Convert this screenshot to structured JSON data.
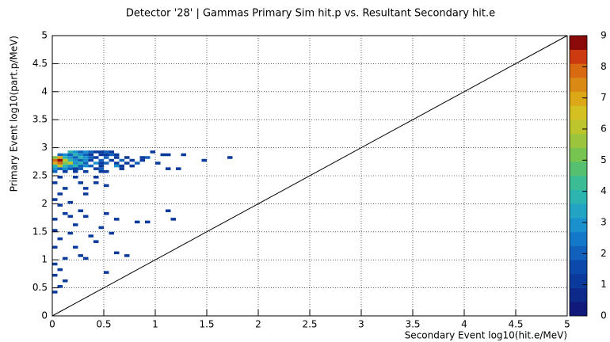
{
  "chart_data": {
    "type": "heatmap",
    "title": "Detector '28' | Gammas Primary Sim hit.p vs. Resultant Secondary hit.e",
    "x_label": "Secondary Event log10(hit.e/MeV)",
    "y_label": "Primary Event log10(part.p/MeV)",
    "bin_width": 0.05,
    "x": [
      0.15,
      0.2,
      0.25,
      0.3,
      0.35,
      0.4,
      0.45,
      0.5,
      0.55,
      0.95,
      0.05,
      0.1,
      0.15,
      0.2,
      0.25,
      0.3,
      0.35,
      0.45,
      0.5,
      0.55,
      0.6,
      1.05,
      1.1,
      1.25,
      0,
      0.05,
      0.1,
      0.15,
      0.2,
      0.25,
      0.3,
      0.35,
      0.4,
      0.5,
      0.6,
      0.7,
      0.85,
      0.9,
      1.7,
      0,
      0.05,
      0.1,
      0.15,
      0.2,
      0.25,
      0.3,
      0.35,
      0.45,
      0.55,
      0.65,
      0.75,
      0.85,
      1.45,
      0,
      0.05,
      0.1,
      0.15,
      0.2,
      0.25,
      0.3,
      0.4,
      0.45,
      0.5,
      0.6,
      0.7,
      0.8,
      1.0,
      0,
      0.05,
      0.1,
      0.15,
      0.2,
      0.25,
      0.3,
      0.35,
      0.45,
      0.6,
      0.65,
      0.75,
      0,
      0.05,
      0.1,
      0.15,
      0.2,
      0.25,
      0.4,
      0.45,
      0.65,
      1.1,
      1.2,
      0,
      0.1,
      0.2,
      0.3,
      0.45,
      0.5,
      0.05,
      0.2,
      0.4,
      0,
      0.25,
      0.4,
      0.5,
      0.1,
      0.3,
      0.05,
      0.3,
      0,
      0.15,
      0.05,
      0.25,
      0.1,
      0.5,
      1.1,
      0.15,
      0.3,
      0.6,
      1.15,
      0,
      0.8,
      0.9,
      0.2,
      0.45,
      0,
      0.15,
      0.35,
      0.55,
      0.05,
      0.4,
      0,
      0.2,
      0.6,
      0.7,
      0.25,
      0.1,
      0.3,
      0,
      0.05,
      0,
      0.5,
      0.1,
      0.05,
      0
    ],
    "y": [
      2.9,
      2.9,
      2.9,
      2.9,
      2.9,
      2.9,
      2.9,
      2.9,
      2.9,
      2.9,
      2.85,
      2.85,
      2.85,
      2.85,
      2.85,
      2.85,
      2.85,
      2.85,
      2.85,
      2.85,
      2.85,
      2.85,
      2.85,
      2.85,
      2.8,
      2.8,
      2.8,
      2.8,
      2.8,
      2.8,
      2.8,
      2.8,
      2.8,
      2.8,
      2.8,
      2.8,
      2.8,
      2.8,
      2.8,
      2.75,
      2.75,
      2.75,
      2.75,
      2.75,
      2.75,
      2.75,
      2.75,
      2.75,
      2.75,
      2.75,
      2.75,
      2.75,
      2.75,
      2.7,
      2.7,
      2.7,
      2.7,
      2.7,
      2.7,
      2.7,
      2.7,
      2.7,
      2.7,
      2.7,
      2.7,
      2.7,
      2.7,
      2.65,
      2.65,
      2.65,
      2.65,
      2.65,
      2.65,
      2.65,
      2.65,
      2.65,
      2.65,
      2.65,
      2.65,
      2.6,
      2.6,
      2.6,
      2.6,
      2.6,
      2.6,
      2.6,
      2.6,
      2.6,
      2.6,
      2.6,
      2.55,
      2.55,
      2.55,
      2.55,
      2.55,
      2.55,
      2.45,
      2.45,
      2.45,
      2.35,
      2.35,
      2.35,
      2.3,
      2.25,
      2.25,
      2.15,
      2.15,
      2.05,
      2.0,
      1.95,
      1.85,
      1.8,
      1.8,
      1.85,
      1.75,
      1.75,
      1.7,
      1.7,
      1.7,
      1.65,
      1.65,
      1.6,
      1.55,
      1.5,
      1.45,
      1.4,
      1.45,
      1.35,
      1.3,
      1.2,
      1.2,
      1.1,
      1.05,
      1.05,
      1.0,
      1.0,
      0.9,
      0.8,
      0.7,
      0.75,
      0.6,
      0.5,
      0.4
    ],
    "values": [
      4,
      3,
      2,
      3,
      2,
      1,
      1,
      2,
      1,
      1,
      2,
      3,
      2,
      4,
      3,
      2,
      1,
      1,
      1,
      2,
      1,
      1,
      1,
      1,
      5,
      7,
      4,
      3,
      2,
      4,
      3,
      2,
      1,
      2,
      1,
      1,
      1,
      2,
      1,
      8,
      9,
      6,
      4,
      3,
      2,
      3,
      1,
      2,
      1,
      2,
      1,
      1,
      1,
      7,
      8,
      5,
      6,
      3,
      4,
      2,
      3,
      1,
      2,
      1,
      1,
      2,
      1,
      4,
      6,
      4,
      3,
      4,
      2,
      3,
      2,
      1,
      3,
      1,
      1,
      3,
      2,
      3,
      2,
      1,
      2,
      1,
      2,
      1,
      1,
      1,
      2,
      1,
      1,
      1,
      1,
      1,
      1,
      1,
      1,
      1,
      1,
      1,
      1,
      1,
      1,
      1,
      1,
      1,
      1,
      1,
      1,
      1,
      1,
      1,
      1,
      1,
      1,
      1,
      1,
      1,
      1,
      1,
      1,
      1,
      1,
      1,
      1,
      1,
      1,
      1,
      1,
      1,
      1,
      1,
      1,
      1,
      1,
      1,
      1,
      1,
      1,
      1,
      1
    ],
    "xlim": [
      0,
      5
    ],
    "ylim": [
      0,
      5
    ],
    "zlim": [
      0,
      9
    ],
    "xticks": [
      0,
      0.5,
      1,
      1.5,
      2,
      2.5,
      3,
      3.5,
      4,
      4.5,
      5
    ],
    "yticks": [
      0,
      0.5,
      1,
      1.5,
      2,
      2.5,
      3,
      3.5,
      4,
      4.5,
      5
    ],
    "zticks": [
      0,
      1,
      2,
      3,
      4,
      5,
      6,
      7,
      8,
      9
    ],
    "grid": true,
    "palette": [
      "#111a7a",
      "#0d2a8a",
      "#0a3a9c",
      "#0b4aac",
      "#1060bc",
      "#1478c8",
      "#1a90cc",
      "#22a4c4",
      "#2bb4b0",
      "#3cbc94",
      "#54c070",
      "#78c450",
      "#9cc43c",
      "#bcc62c",
      "#d4c020",
      "#dca818",
      "#da8a14",
      "#d86a12",
      "#cc3a10",
      "#8a0a0a"
    ]
  }
}
